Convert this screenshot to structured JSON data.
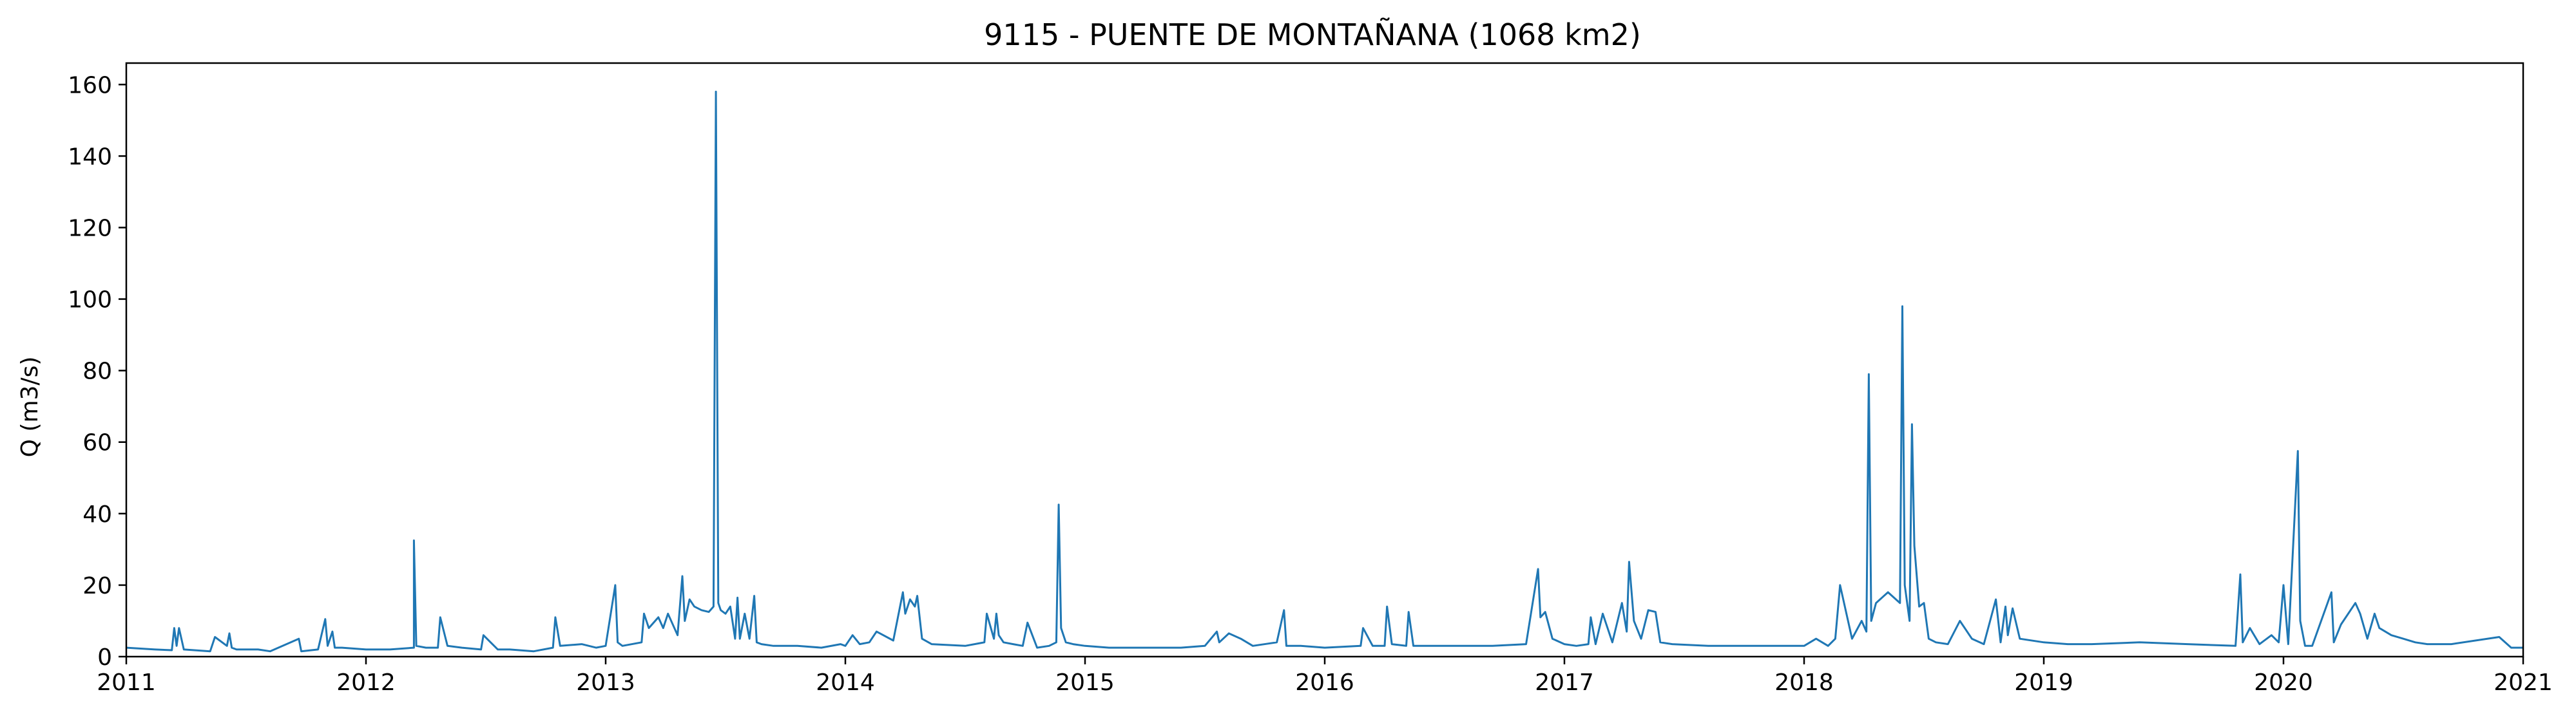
{
  "chart_data": {
    "type": "line",
    "title": "9115 - PUENTE DE MONTAÑANA (1068 km2)",
    "xlabel": "",
    "ylabel": "Q (m3/s)",
    "xlim": [
      2011.0,
      2021.0
    ],
    "ylim": [
      0,
      166
    ],
    "x_ticks": [
      "2011",
      "2012",
      "2013",
      "2014",
      "2015",
      "2016",
      "2017",
      "2018",
      "2019",
      "2020",
      "2021"
    ],
    "y_ticks": [
      0,
      20,
      40,
      60,
      80,
      100,
      120,
      140,
      160
    ],
    "grid": false,
    "legend": "none",
    "series": [
      {
        "color": "#1f77b4",
        "x": [
          2011.0,
          2011.12,
          2011.19,
          2011.2,
          2011.21,
          2011.22,
          2011.24,
          2011.35,
          2011.37,
          2011.42,
          2011.43,
          2011.44,
          2011.46,
          2011.55,
          2011.6,
          2011.72,
          2011.73,
          2011.8,
          2011.83,
          2011.84,
          2011.86,
          2011.87,
          2011.9,
          2012.0,
          2012.1,
          2012.2,
          2012.2,
          2012.21,
          2012.25,
          2012.3,
          2012.31,
          2012.34,
          2012.4,
          2012.48,
          2012.49,
          2012.55,
          2012.6,
          2012.7,
          2012.78,
          2012.79,
          2012.81,
          2012.9,
          2012.96,
          2013.0,
          2013.04,
          2013.05,
          2013.07,
          2013.15,
          2013.16,
          2013.18,
          2013.22,
          2013.24,
          2013.26,
          2013.3,
          2013.32,
          2013.33,
          2013.35,
          2013.37,
          2013.4,
          2013.43,
          2013.45,
          2013.46,
          2013.47,
          2013.48,
          2013.5,
          2013.52,
          2013.54,
          2013.55,
          2013.56,
          2013.58,
          2013.6,
          2013.62,
          2013.63,
          2013.65,
          2013.7,
          2013.8,
          2013.9,
          2013.98,
          2014.0,
          2014.03,
          2014.06,
          2014.1,
          2014.13,
          2014.2,
          2014.24,
          2014.25,
          2014.27,
          2014.29,
          2014.3,
          2014.32,
          2014.36,
          2014.5,
          2014.58,
          2014.59,
          2014.62,
          2014.63,
          2014.64,
          2014.66,
          2014.7,
          2014.74,
          2014.76,
          2014.8,
          2014.85,
          2014.88,
          2014.89,
          2014.9,
          2014.92,
          2014.95,
          2015.0,
          2015.1,
          2015.2,
          2015.3,
          2015.4,
          2015.5,
          2015.55,
          2015.56,
          2015.6,
          2015.65,
          2015.7,
          2015.8,
          2015.83,
          2015.84,
          2015.86,
          2015.9,
          2016.0,
          2016.15,
          2016.16,
          2016.2,
          2016.25,
          2016.26,
          2016.28,
          2016.34,
          2016.35,
          2016.37,
          2016.5,
          2016.7,
          2016.84,
          2016.89,
          2016.9,
          2016.92,
          2016.95,
          2017.0,
          2017.05,
          2017.1,
          2017.11,
          2017.13,
          2017.16,
          2017.2,
          2017.24,
          2017.26,
          2017.27,
          2017.29,
          2017.32,
          2017.35,
          2017.38,
          2017.4,
          2017.45,
          2017.6,
          2017.8,
          2017.9,
          2018.0,
          2018.05,
          2018.1,
          2018.13,
          2018.15,
          2018.2,
          2018.24,
          2018.26,
          2018.27,
          2018.28,
          2018.3,
          2018.35,
          2018.4,
          2018.41,
          2018.42,
          2018.44,
          2018.45,
          2018.46,
          2018.48,
          2018.5,
          2018.52,
          2018.55,
          2018.6,
          2018.65,
          2018.7,
          2018.75,
          2018.8,
          2018.82,
          2018.84,
          2018.85,
          2018.87,
          2018.9,
          2019.0,
          2019.1,
          2019.2,
          2019.4,
          2019.6,
          2019.8,
          2019.82,
          2019.83,
          2019.86,
          2019.9,
          2019.95,
          2019.98,
          2020.0,
          2020.02,
          2020.06,
          2020.07,
          2020.09,
          2020.12,
          2020.2,
          2020.21,
          2020.24,
          2020.3,
          2020.32,
          2020.35,
          2020.38,
          2020.4,
          2020.45,
          2020.5,
          2020.55,
          2020.6,
          2020.7,
          2020.9,
          2020.95,
          2021.0
        ],
        "values": [
          2.5,
          2.0,
          1.8,
          8.0,
          3.0,
          8.0,
          2.0,
          1.5,
          5.5,
          3.0,
          6.5,
          2.5,
          2.0,
          2.0,
          1.5,
          5.0,
          1.5,
          2.0,
          10.5,
          3.0,
          7.0,
          2.5,
          2.5,
          2.0,
          2.0,
          2.5,
          32.5,
          3.0,
          2.5,
          2.5,
          11.0,
          3.0,
          2.5,
          2.0,
          6.0,
          2.0,
          2.0,
          1.5,
          2.5,
          11.0,
          3.0,
          3.5,
          2.5,
          3.0,
          20.0,
          4.0,
          3.0,
          4.0,
          12.0,
          8.0,
          11.0,
          8.0,
          12.0,
          6.0,
          22.5,
          10.0,
          16.0,
          14.0,
          13.0,
          12.5,
          14.0,
          158.0,
          15.0,
          13.0,
          12.0,
          14.0,
          5.0,
          16.5,
          5.0,
          12.0,
          5.0,
          17.0,
          4.0,
          3.5,
          3.0,
          3.0,
          2.5,
          3.5,
          3.0,
          6.0,
          3.5,
          4.0,
          7.0,
          4.5,
          18.0,
          12.0,
          16.0,
          14.0,
          17.0,
          5.0,
          3.5,
          3.0,
          4.0,
          12.0,
          5.0,
          12.0,
          6.0,
          4.0,
          3.5,
          3.0,
          9.5,
          2.5,
          3.0,
          4.0,
          42.5,
          8.0,
          4.0,
          3.5,
          3.0,
          2.5,
          2.5,
          2.5,
          2.5,
          3.0,
          7.0,
          4.0,
          6.5,
          5.0,
          3.0,
          4.0,
          13.0,
          3.0,
          3.0,
          3.0,
          2.5,
          3.0,
          8.0,
          3.0,
          3.0,
          14.0,
          3.5,
          3.0,
          12.5,
          3.0,
          3.0,
          3.0,
          3.5,
          24.5,
          11.0,
          12.5,
          5.0,
          3.5,
          3.0,
          3.5,
          11.0,
          3.5,
          12.0,
          4.0,
          15.0,
          7.0,
          26.5,
          10.0,
          5.0,
          13.0,
          12.5,
          4.0,
          3.5,
          3.0,
          3.0,
          3.0,
          3.0,
          5.0,
          3.0,
          5.0,
          20.0,
          5.0,
          10.0,
          7.0,
          79.0,
          10.0,
          15.0,
          18.0,
          15.0,
          98.0,
          20.0,
          10.0,
          65.0,
          31.0,
          14.0,
          15.0,
          5.0,
          4.0,
          3.5,
          10.0,
          5.0,
          3.5,
          16.0,
          4.0,
          14.0,
          6.0,
          13.5,
          5.0,
          4.0,
          3.5,
          3.5,
          4.0,
          3.5,
          3.0,
          23.0,
          4.0,
          8.0,
          3.5,
          6.0,
          4.0,
          20.0,
          3.5,
          57.5,
          10.0,
          3.0,
          3.0,
          18.0,
          4.0,
          9.0,
          15.0,
          12.0,
          5.0,
          12.0,
          8.0,
          6.0,
          5.0,
          4.0,
          3.5,
          3.5,
          5.5,
          2.5,
          2.5
        ]
      }
    ]
  }
}
